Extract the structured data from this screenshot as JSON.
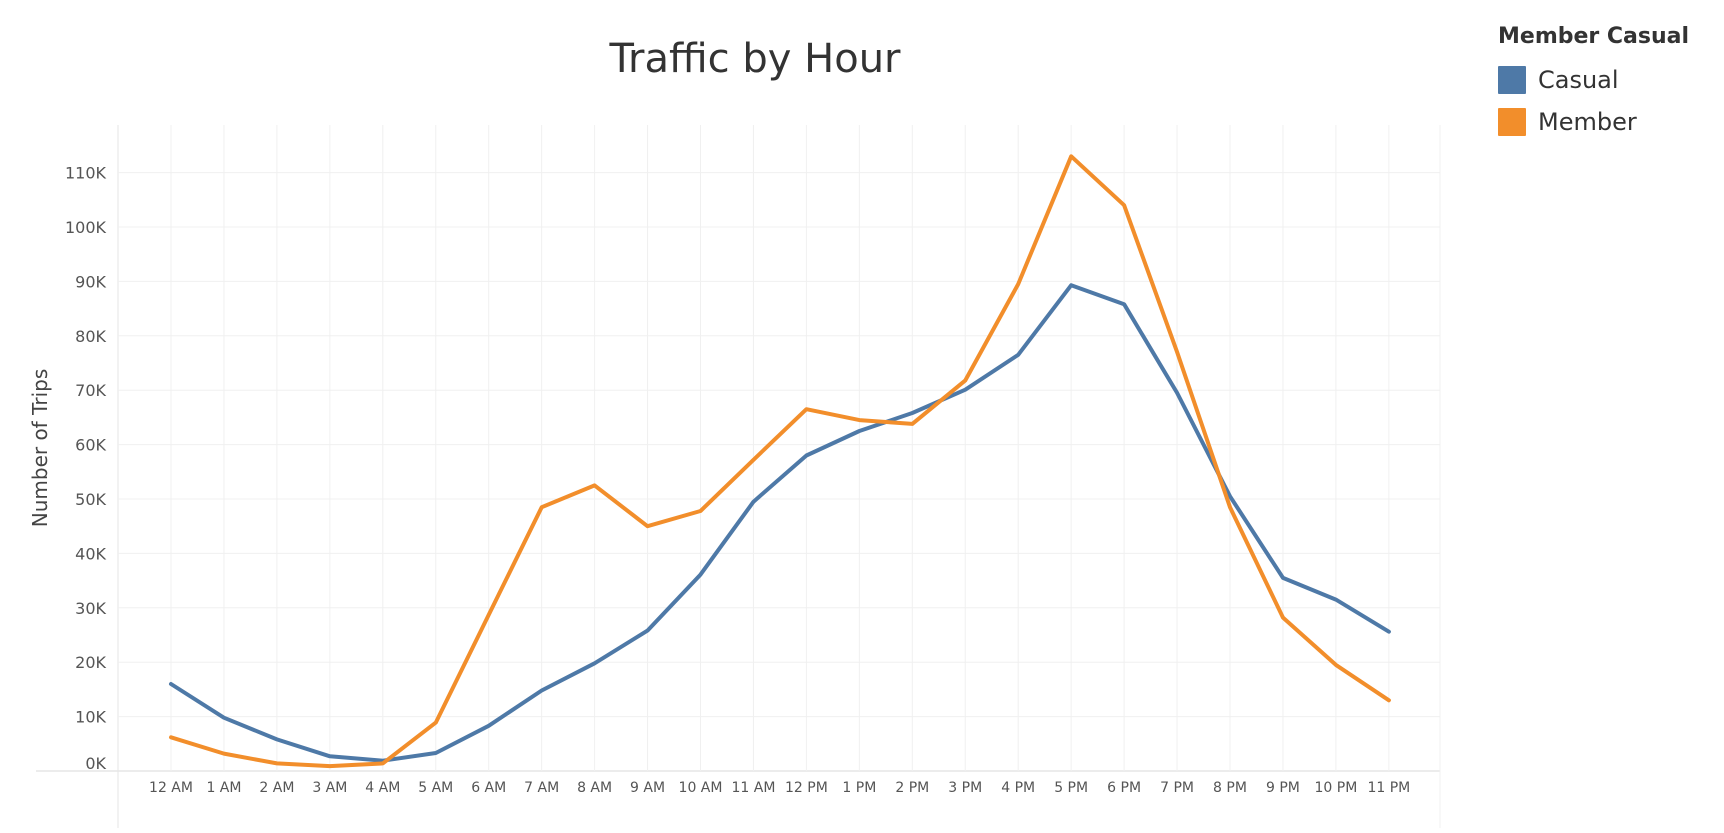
{
  "chart_data": {
    "type": "line",
    "title": "Traffic by Hour",
    "xlabel": "",
    "ylabel": "Number of Trips",
    "categories": [
      "12 AM",
      "1 AM",
      "2 AM",
      "3 AM",
      "4 AM",
      "5 AM",
      "6 AM",
      "7 AM",
      "8 AM",
      "9 AM",
      "10 AM",
      "11 AM",
      "12 PM",
      "1 PM",
      "2 PM",
      "3 PM",
      "4 PM",
      "5 PM",
      "6 PM",
      "7 PM",
      "8 PM",
      "9 PM",
      "10 PM",
      "11 PM"
    ],
    "y_ticks": [
      "0K",
      "10K",
      "20K",
      "30K",
      "40K",
      "50K",
      "60K",
      "70K",
      "80K",
      "90K",
      "100K",
      "110K"
    ],
    "ylim": [
      0,
      118000
    ],
    "grid": true,
    "legend": {
      "title": "Member Casual",
      "position": "top-right"
    },
    "series": [
      {
        "name": "Casual",
        "color": "#4e79a7",
        "values": [
          16000,
          9800,
          5800,
          2700,
          1900,
          3300,
          8300,
          14800,
          19800,
          25800,
          36100,
          49500,
          58000,
          62500,
          65800,
          70100,
          76500,
          89300,
          85800,
          69500,
          50500,
          35500,
          31500,
          25600
        ]
      },
      {
        "name": "Member",
        "color": "#f28e2b",
        "values": [
          6200,
          3200,
          1400,
          900,
          1400,
          8900,
          28700,
          48500,
          52500,
          45000,
          47800,
          57200,
          66500,
          64500,
          63800,
          71800,
          89500,
          113000,
          104000,
          77000,
          48500,
          28200,
          19500,
          13000
        ]
      }
    ]
  }
}
